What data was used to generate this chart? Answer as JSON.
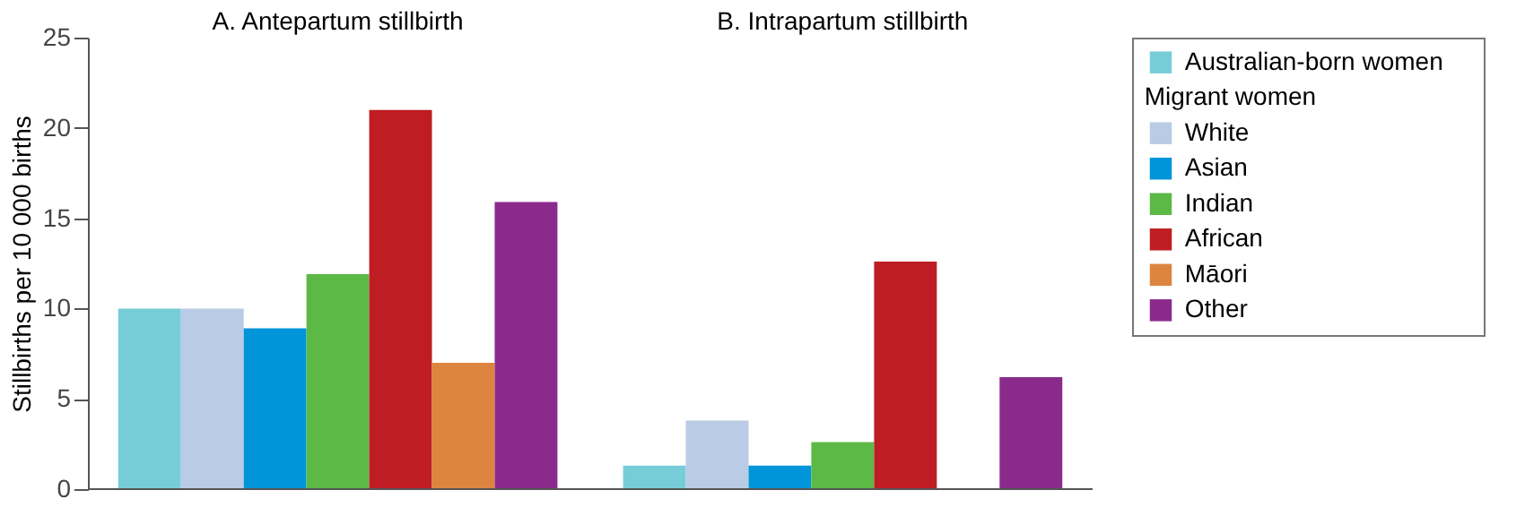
{
  "chart_data": {
    "type": "bar",
    "categories": [
      "A. Antepartum stillbirth",
      "B. Intrapartum stillbirth"
    ],
    "ylabel": "Stillbirths per 10 000 births",
    "legend_title": "Migrant women",
    "series": [
      {
        "name": "Australian-born women",
        "color": "#76cdd8",
        "values": [
          10.0,
          1.3
        ]
      },
      {
        "name": "White",
        "color": "#b9cbe5",
        "values": [
          10.0,
          3.8
        ]
      },
      {
        "name": "Asian",
        "color": "#0094d9",
        "values": [
          8.9,
          1.3
        ]
      },
      {
        "name": "Indian",
        "color": "#5cb946",
        "values": [
          11.9,
          2.6
        ]
      },
      {
        "name": "African",
        "color": "#be1d23",
        "values": [
          21.0,
          12.6
        ]
      },
      {
        "name": "Māori",
        "color": "#dd853f",
        "values": [
          7.0,
          null
        ]
      },
      {
        "name": "Other",
        "color": "#8a2b8c",
        "values": [
          15.9,
          6.2
        ]
      }
    ],
    "ylim": [
      0,
      25
    ],
    "yticks": [
      0,
      5,
      10,
      15,
      20,
      25
    ],
    "grid": false,
    "legend": "top right"
  }
}
